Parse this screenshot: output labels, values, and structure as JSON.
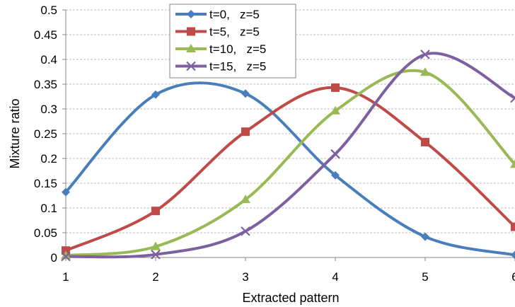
{
  "chart_data": {
    "type": "line",
    "xlabel": "Extracted pattern",
    "ylabel": "Mixture ratio",
    "x_ticks": [
      "1",
      "2",
      "3",
      "4",
      "5",
      "6"
    ],
    "y_ticks": [
      "0",
      "0.05",
      "0.1",
      "0.15",
      "0.2",
      "0.25",
      "0.3",
      "0.35",
      "0.4",
      "0.45",
      "0.5"
    ],
    "xlim": [
      1,
      6
    ],
    "ylim": [
      0,
      0.5
    ],
    "grid": "horizontal dashed",
    "legend_position": "top-center",
    "x": [
      1,
      2,
      3,
      4,
      5,
      6
    ],
    "series": [
      {
        "name": "t=0,   z=5",
        "color": "#4a7ebb",
        "marker": "diamond",
        "values": [
          0.132,
          0.329,
          0.331,
          0.166,
          0.042,
          0.005
        ]
      },
      {
        "name": "t=5,   z=5",
        "color": "#be4b48",
        "marker": "square",
        "values": [
          0.014,
          0.094,
          0.254,
          0.343,
          0.233,
          0.062
        ]
      },
      {
        "name": "t=10,   z=5",
        "color": "#98b954",
        "marker": "triangle",
        "values": [
          0.004,
          0.022,
          0.117,
          0.296,
          0.374,
          0.188
        ]
      },
      {
        "name": "t=15,   z=5",
        "color": "#7d60a0",
        "marker": "x",
        "values": [
          0.002,
          0.006,
          0.053,
          0.209,
          0.41,
          0.322
        ]
      }
    ]
  }
}
